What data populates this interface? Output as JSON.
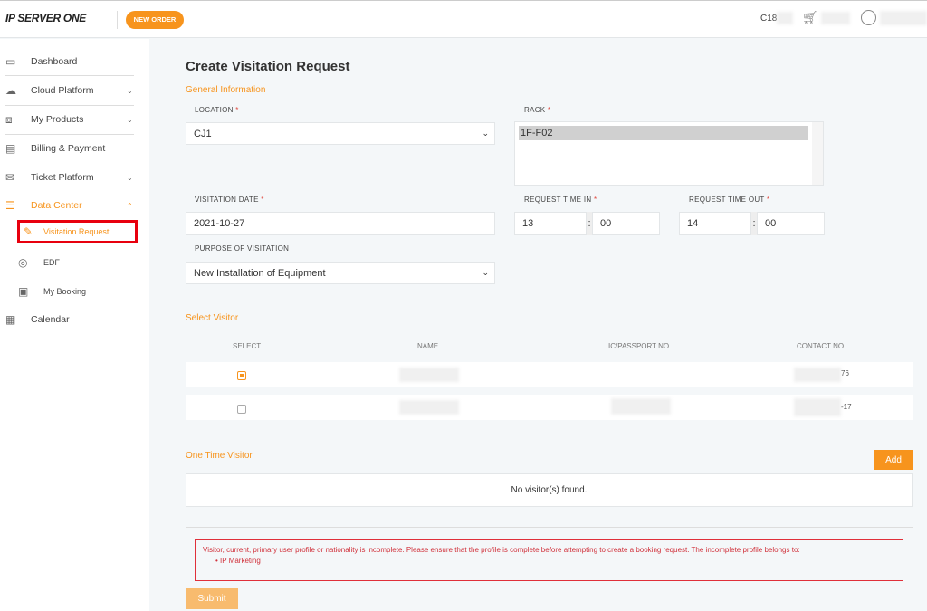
{
  "header": {
    "logo": "IP SERVER ONE",
    "new_order": "NEW ORDER",
    "account_prefix": "C18"
  },
  "sidebar": {
    "items": [
      {
        "label": "Dashboard",
        "icon": "monitor-icon"
      },
      {
        "label": "Cloud Platform",
        "icon": "cloud-icon",
        "chevron": "down"
      },
      {
        "label": "My Products",
        "icon": "box-icon",
        "chevron": "down"
      },
      {
        "label": "Billing & Payment",
        "icon": "billing-icon"
      },
      {
        "label": "Ticket Platform",
        "icon": "mail-icon",
        "chevron": "down"
      },
      {
        "label": "Data Center",
        "icon": "server-icon",
        "chevron": "up",
        "active": true
      },
      {
        "label": "Visitation Request",
        "icon": "document-icon",
        "active": true
      },
      {
        "label": "EDF",
        "icon": "edf-icon"
      },
      {
        "label": "My Booking",
        "icon": "booking-icon"
      },
      {
        "label": "Calendar",
        "icon": "calendar-icon"
      }
    ]
  },
  "page": {
    "title": "Create Visitation Request",
    "general": "General Information",
    "location_label": "LOCATION",
    "location_value": "CJ1",
    "rack_label": "RACK",
    "rack_value": "1F-F02",
    "date_label": "VISITATION DATE",
    "date_value": "2021-10-27",
    "time_in_label": "REQUEST TIME IN",
    "time_in_h": "13",
    "time_in_m": "00",
    "time_out_label": "REQUEST TIME OUT",
    "time_out_h": "14",
    "time_out_m": "00",
    "purpose_label": "PURPOSE OF VISITATION",
    "purpose_value": "New Installation of Equipment",
    "required": "*",
    "colon": ":",
    "select_visitor": "Select Visitor",
    "columns": [
      "SELECT",
      "NAME",
      "IC/PASSPORT NO.",
      "CONTACT NO."
    ],
    "visitors": [
      {
        "checked": true,
        "contact_suffix": "76"
      },
      {
        "checked": false,
        "contact_suffix": "-17"
      }
    ],
    "one_time": "One Time Visitor",
    "add": "Add",
    "no_visitor": "No visitor(s) found.",
    "error": "Visitor, current, primary user profile or nationality is incomplete. Please ensure that the profile is complete before attempting to create a booking request. The incomplete profile belongs to:",
    "error_item": "IP Marketing",
    "submit": "Submit"
  },
  "colors": {
    "accent": "#f7941d",
    "error": "#e0303a"
  }
}
